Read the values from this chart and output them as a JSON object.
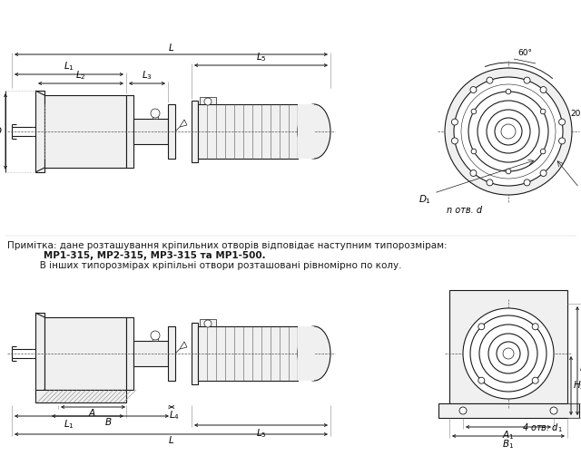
{
  "bg_color": "#ffffff",
  "line_color": "#1a1a1a",
  "lw": 0.8,
  "tlw": 0.5,
  "fs": 7.5,
  "note_line1": "Примітка: дане розташування кріпильних отворів відповідає наступним типорозмірам:",
  "note_line2": "           МР1-315, МР2-315, МР3-315 та МР1-500.",
  "note_line3": "           В інших типорозмірах кріпільні отвори розташовані рівномірно по колу."
}
